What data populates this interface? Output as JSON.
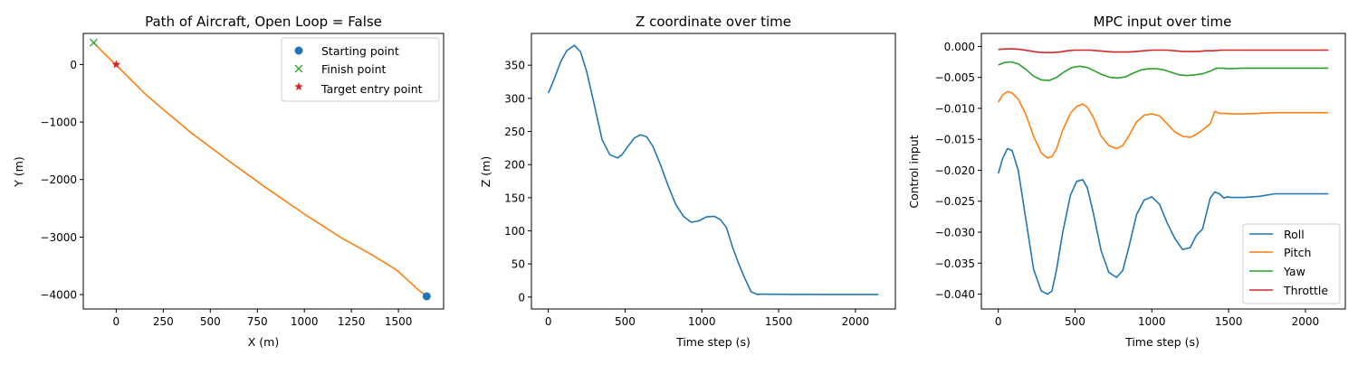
{
  "chart_data": [
    {
      "type": "line",
      "title": "Path of Aircraft, Open Loop = False",
      "xlabel": "X (m)",
      "ylabel": "Y (m)",
      "xlim": [
        -175,
        1740
      ],
      "ylim": [
        -4250,
        540
      ],
      "xticks": [
        0,
        250,
        500,
        750,
        1000,
        1250,
        1500
      ],
      "yticks": [
        -4000,
        -3000,
        -2000,
        -1000,
        0
      ],
      "legend_position": "top-right",
      "path": {
        "color": "#ff7f0e",
        "x": [
          1650,
          1600,
          1550,
          1500,
          1450,
          1350,
          1200,
          1000,
          800,
          600,
          400,
          250,
          150,
          0,
          -60,
          -120
        ],
        "y": [
          -4030,
          -3900,
          -3750,
          -3600,
          -3490,
          -3290,
          -3020,
          -2600,
          -2150,
          -1680,
          -1190,
          -780,
          -500,
          -10,
          180,
          380
        ]
      },
      "markers": [
        {
          "name": "Starting point",
          "marker": "circle",
          "color": "#1f77b4",
          "x": 1650,
          "y": -4030
        },
        {
          "name": "Finish point",
          "marker": "x",
          "color": "#2ca02c",
          "x": -120,
          "y": 380
        },
        {
          "name": "Target entry point",
          "marker": "star",
          "color": "#d62728",
          "x": 0,
          "y": 0
        }
      ]
    },
    {
      "type": "line",
      "title": "Z coordinate over time",
      "xlabel": "Time step (s)",
      "ylabel": "Z (m)",
      "xlim": [
        -110,
        2260
      ],
      "ylim": [
        -18,
        398
      ],
      "xticks": [
        0,
        500,
        1000,
        1500,
        2000
      ],
      "yticks": [
        0,
        50,
        100,
        150,
        200,
        250,
        300,
        350
      ],
      "series": [
        {
          "color": "#1f77b4",
          "x": [
            0,
            40,
            80,
            120,
            170,
            210,
            250,
            300,
            350,
            400,
            450,
            480,
            520,
            560,
            600,
            640,
            680,
            730,
            780,
            830,
            880,
            930,
            980,
            1030,
            1080,
            1120,
            1160,
            1200,
            1240,
            1280,
            1320,
            1360,
            1400,
            1430,
            1480,
            1600,
            1800,
            2000,
            2150
          ],
          "y": [
            308,
            330,
            355,
            372,
            380,
            370,
            340,
            290,
            238,
            215,
            210,
            215,
            228,
            240,
            245,
            242,
            228,
            200,
            168,
            140,
            122,
            113,
            115,
            121,
            122,
            117,
            105,
            75,
            50,
            28,
            8,
            4,
            4.5,
            4.2,
            4.2,
            4.1,
            4,
            4,
            4
          ]
        }
      ]
    },
    {
      "type": "line",
      "title": "MPC input over time",
      "xlabel": "Time step (s)",
      "ylabel": "Control input",
      "xlim": [
        -110,
        2260
      ],
      "ylim": [
        -0.0424,
        0.0021
      ],
      "xticks": [
        0,
        500,
        1000,
        1500,
        2000
      ],
      "yticks": [
        -0.04,
        -0.035,
        -0.03,
        -0.025,
        -0.02,
        -0.015,
        -0.01,
        -0.005,
        0.0
      ],
      "ytick_labels": [
        "−0.040",
        "−0.035",
        "−0.030",
        "−0.025",
        "−0.020",
        "−0.015",
        "−0.010",
        "−0.005",
        "0.000"
      ],
      "legend_position": "lower-right",
      "series": [
        {
          "name": "Roll",
          "color": "#1f77b4",
          "x": [
            0,
            30,
            60,
            90,
            130,
            180,
            230,
            280,
            320,
            350,
            380,
            420,
            470,
            510,
            550,
            580,
            620,
            670,
            720,
            770,
            810,
            850,
            900,
            950,
            1000,
            1050,
            1100,
            1150,
            1200,
            1250,
            1290,
            1330,
            1380,
            1410,
            1440,
            1470,
            1490,
            1520,
            1600,
            1700,
            1800,
            2000,
            2150
          ],
          "y": [
            -0.0205,
            -0.018,
            -0.0165,
            -0.0168,
            -0.02,
            -0.028,
            -0.036,
            -0.0395,
            -0.04,
            -0.0395,
            -0.036,
            -0.03,
            -0.024,
            -0.0218,
            -0.0215,
            -0.0228,
            -0.027,
            -0.033,
            -0.0365,
            -0.0373,
            -0.0362,
            -0.0325,
            -0.0272,
            -0.0248,
            -0.0243,
            -0.0255,
            -0.0285,
            -0.031,
            -0.0328,
            -0.0325,
            -0.0305,
            -0.0295,
            -0.0245,
            -0.0235,
            -0.0238,
            -0.0245,
            -0.0243,
            -0.0244,
            -0.0244,
            -0.0242,
            -0.0238,
            -0.0238,
            -0.0238
          ]
        },
        {
          "name": "Pitch",
          "color": "#ff7f0e",
          "x": [
            0,
            30,
            60,
            90,
            130,
            180,
            230,
            280,
            320,
            350,
            380,
            420,
            470,
            510,
            550,
            580,
            620,
            670,
            720,
            770,
            810,
            850,
            900,
            950,
            1000,
            1050,
            1100,
            1150,
            1200,
            1250,
            1290,
            1330,
            1380,
            1410,
            1440,
            1470,
            1520,
            1600,
            1700,
            1800,
            2000,
            2150
          ],
          "y": [
            -0.009,
            -0.0078,
            -0.0073,
            -0.0075,
            -0.0085,
            -0.011,
            -0.0145,
            -0.0172,
            -0.018,
            -0.0178,
            -0.0165,
            -0.0135,
            -0.0108,
            -0.0097,
            -0.0093,
            -0.0098,
            -0.0115,
            -0.0145,
            -0.016,
            -0.0165,
            -0.016,
            -0.0145,
            -0.0122,
            -0.0111,
            -0.0109,
            -0.0112,
            -0.0125,
            -0.0138,
            -0.0145,
            -0.0147,
            -0.0142,
            -0.0135,
            -0.0125,
            -0.0105,
            -0.0108,
            -0.0108,
            -0.0109,
            -0.0109,
            -0.0108,
            -0.0107,
            -0.0107,
            -0.0107
          ]
        },
        {
          "name": "Yaw",
          "color": "#2ca02c",
          "x": [
            0,
            40,
            80,
            130,
            180,
            230,
            280,
            330,
            380,
            430,
            480,
            530,
            580,
            630,
            680,
            730,
            780,
            830,
            880,
            930,
            980,
            1030,
            1080,
            1130,
            1180,
            1230,
            1280,
            1330,
            1380,
            1420,
            1460,
            1500,
            1600,
            1800,
            2000,
            2150
          ],
          "y": [
            -0.003,
            -0.0026,
            -0.0025,
            -0.0028,
            -0.0037,
            -0.0048,
            -0.0054,
            -0.0055,
            -0.005,
            -0.0041,
            -0.0034,
            -0.0032,
            -0.0034,
            -0.004,
            -0.0046,
            -0.005,
            -0.0051,
            -0.0049,
            -0.0043,
            -0.0038,
            -0.0036,
            -0.0036,
            -0.0038,
            -0.0042,
            -0.0046,
            -0.0047,
            -0.0046,
            -0.0044,
            -0.004,
            -0.0035,
            -0.0035,
            -0.0036,
            -0.0035,
            -0.0035,
            -0.0035,
            -0.0035
          ]
        },
        {
          "name": "Throttle",
          "color": "#d62728",
          "x": [
            0,
            50,
            100,
            150,
            200,
            250,
            300,
            350,
            400,
            450,
            500,
            550,
            600,
            650,
            700,
            750,
            800,
            850,
            900,
            950,
            1000,
            1050,
            1100,
            1150,
            1200,
            1250,
            1300,
            1350,
            1400,
            1450,
            1500,
            1700,
            1900,
            2150
          ],
          "y": [
            -0.0005,
            -0.0004,
            -0.0004,
            -0.0005,
            -0.0007,
            -0.0009,
            -0.001,
            -0.001,
            -0.0009,
            -0.0007,
            -0.0006,
            -0.0006,
            -0.0006,
            -0.0007,
            -0.0008,
            -0.0009,
            -0.0009,
            -0.0009,
            -0.0008,
            -0.0007,
            -0.0006,
            -0.0006,
            -0.0006,
            -0.0007,
            -0.0008,
            -0.0008,
            -0.0008,
            -0.0007,
            -0.0007,
            -0.0006,
            -0.0006,
            -0.0006,
            -0.0006,
            -0.0006
          ]
        }
      ]
    }
  ]
}
